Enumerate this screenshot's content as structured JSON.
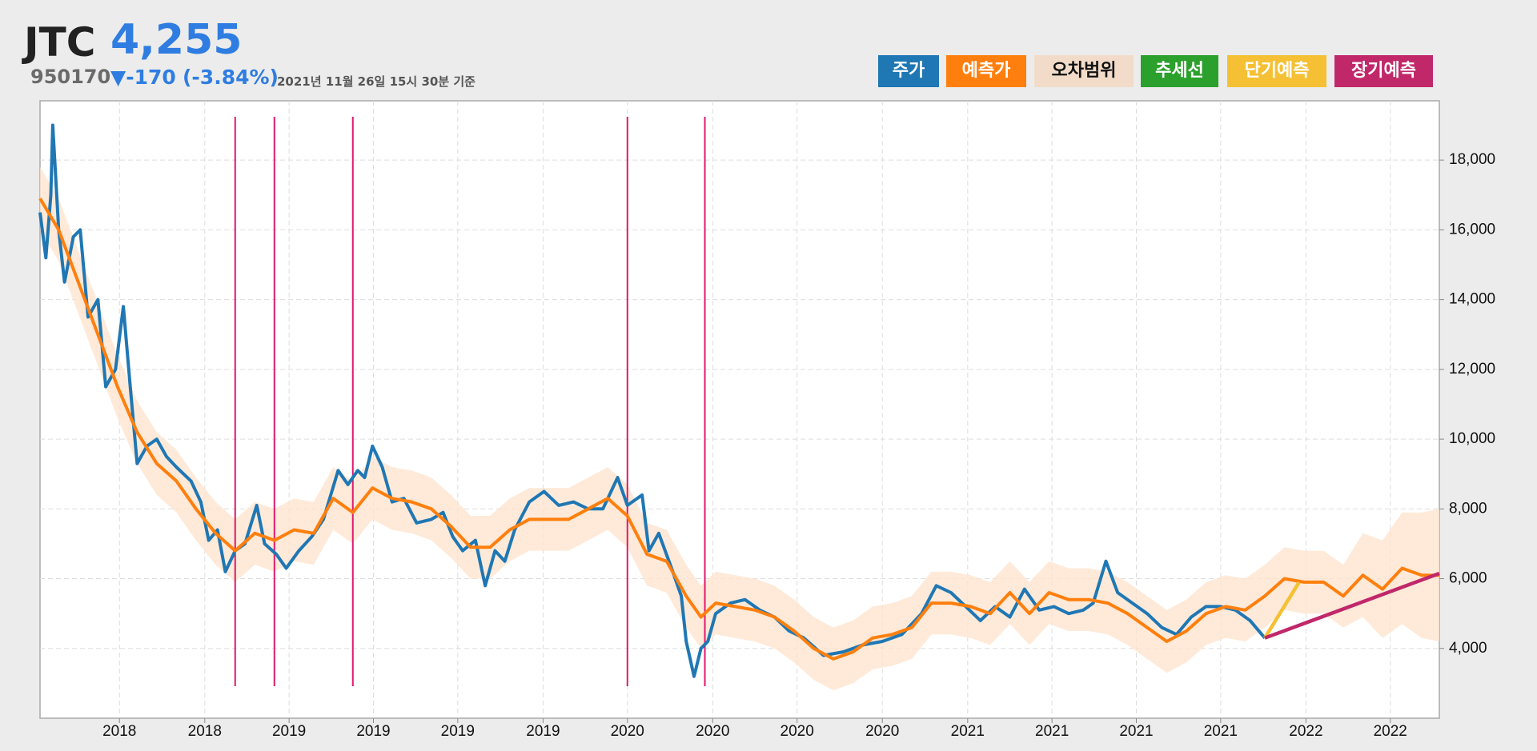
{
  "header": {
    "name": "JTC",
    "price": "4,255",
    "code": "950170",
    "change": "▼-170",
    "change_pct": "(-3.84%)",
    "timestamp": "2021년 11월 26일 15시 30분 기준"
  },
  "chart_data": {
    "type": "line",
    "xlim": [
      0,
      1427
    ],
    "ylim": [
      2000,
      19700
    ],
    "xticks": [
      {
        "value": 81,
        "label": "2018"
      },
      {
        "value": 168,
        "label": "2018"
      },
      {
        "value": 254,
        "label": "2019"
      },
      {
        "value": 340,
        "label": "2019"
      },
      {
        "value": 426,
        "label": "2019"
      },
      {
        "value": 513,
        "label": "2019"
      },
      {
        "value": 599,
        "label": "2020"
      },
      {
        "value": 686,
        "label": "2020"
      },
      {
        "value": 772,
        "label": "2020"
      },
      {
        "value": 859,
        "label": "2020"
      },
      {
        "value": 946,
        "label": "2021"
      },
      {
        "value": 1032,
        "label": "2021"
      },
      {
        "value": 1118,
        "label": "2021"
      },
      {
        "value": 1204,
        "label": "2021"
      },
      {
        "value": 1291,
        "label": "2022"
      },
      {
        "value": 1377,
        "label": "2022"
      }
    ],
    "yticks": [
      {
        "value": 4000,
        "label": "4,000"
      },
      {
        "value": 6000,
        "label": "6,000"
      },
      {
        "value": 8000,
        "label": "8,000"
      },
      {
        "value": 10000,
        "label": "10,000"
      },
      {
        "value": 12000,
        "label": "12,000"
      },
      {
        "value": 14000,
        "label": "14,000"
      },
      {
        "value": 16000,
        "label": "16,000"
      },
      {
        "value": 18000,
        "label": "18,000"
      }
    ],
    "grid": true,
    "series": [
      {
        "name": "주가",
        "color": "#1f77b4",
        "x": [
          0,
          6,
          11,
          13,
          19,
          25,
          34,
          41,
          49,
          59,
          67,
          77,
          85,
          92,
          99,
          109,
          119,
          129,
          139,
          154,
          164,
          172,
          181,
          189,
          199,
          209,
          221,
          229,
          241,
          251,
          264,
          277,
          289,
          304,
          314,
          324,
          331,
          339,
          349,
          359,
          371,
          384,
          399,
          411,
          421,
          431,
          444,
          454,
          464,
          474,
          484,
          499,
          514,
          529,
          544,
          559,
          574,
          589,
          599,
          614,
          621,
          631,
          644,
          654,
          659,
          667,
          674,
          681,
          689,
          704,
          719,
          734,
          749,
          764,
          779,
          799,
          819,
          839,
          859,
          879,
          899,
          914,
          929,
          944,
          959,
          974,
          989,
          1004,
          1019,
          1034,
          1049,
          1064,
          1074,
          1087,
          1099,
          1114,
          1129,
          1144,
          1159,
          1174,
          1189,
          1204,
          1219,
          1234,
          1249
        ],
        "values": [
          16500,
          15200,
          17000,
          19000,
          16000,
          14500,
          15800,
          16000,
          13500,
          14000,
          11500,
          12000,
          13800,
          11500,
          9300,
          9800,
          10000,
          9500,
          9200,
          8800,
          8200,
          7100,
          7400,
          6200,
          6800,
          7000,
          8100,
          7000,
          6700,
          6300,
          6800,
          7200,
          7700,
          9100,
          8700,
          9100,
          8900,
          9800,
          9200,
          8200,
          8300,
          7600,
          7700,
          7900,
          7200,
          6800,
          7100,
          5800,
          6800,
          6500,
          7400,
          8200,
          8500,
          8100,
          8200,
          8000,
          8000,
          8900,
          8100,
          8400,
          6800,
          7300,
          6300,
          5500,
          4200,
          3200,
          4000,
          4200,
          5000,
          5300,
          5400,
          5100,
          4900,
          4500,
          4300,
          3800,
          3900,
          4100,
          4200,
          4400,
          5000,
          5800,
          5600,
          5200,
          4800,
          5200,
          4900,
          5700,
          5100,
          5200,
          5000,
          5100,
          5300,
          6500,
          5600,
          5300,
          5000,
          4600,
          4400,
          4900,
          5200,
          5200,
          5100,
          4800,
          4300
        ]
      },
      {
        "name": "예측가",
        "color": "#ff7f0e",
        "x": [
          0,
          19,
          39,
          59,
          79,
          99,
          119,
          139,
          159,
          179,
          199,
          219,
          239,
          259,
          279,
          299,
          319,
          339,
          359,
          379,
          399,
          419,
          439,
          459,
          479,
          499,
          519,
          539,
          559,
          579,
          599,
          619,
          639,
          659,
          674,
          689,
          709,
          729,
          749,
          769,
          789,
          809,
          829,
          849,
          869,
          889,
          909,
          929,
          949,
          969,
          989,
          1009,
          1029,
          1049,
          1069,
          1089,
          1109,
          1129,
          1149,
          1169,
          1189,
          1209,
          1229,
          1249,
          1269,
          1289,
          1309,
          1329,
          1349,
          1369,
          1389,
          1409,
          1427
        ],
        "values": [
          16900,
          16000,
          14500,
          13000,
          11500,
          10200,
          9300,
          8800,
          8000,
          7300,
          6800,
          7300,
          7100,
          7400,
          7300,
          8300,
          7900,
          8600,
          8300,
          8200,
          8000,
          7500,
          6900,
          6900,
          7400,
          7700,
          7700,
          7700,
          8000,
          8300,
          7800,
          6700,
          6500,
          5500,
          4900,
          5300,
          5200,
          5100,
          4900,
          4500,
          4000,
          3700,
          3900,
          4300,
          4400,
          4600,
          5300,
          5300,
          5200,
          5000,
          5600,
          5000,
          5600,
          5400,
          5400,
          5300,
          5000,
          4600,
          4200,
          4500,
          5000,
          5200,
          5100,
          5500,
          6000,
          5900,
          5900,
          5500,
          6100,
          5700,
          6300,
          6100,
          6100
        ]
      },
      {
        "name": "오차범위",
        "color": "#ffe3cc",
        "upper": [
          17800,
          16900,
          15400,
          13900,
          12400,
          11100,
          10200,
          9700,
          8900,
          8200,
          7700,
          8200,
          8000,
          8300,
          8200,
          9200,
          8800,
          9500,
          9200,
          9100,
          8900,
          8400,
          7800,
          7800,
          8300,
          8600,
          8600,
          8600,
          8900,
          9200,
          8700,
          7600,
          7400,
          6400,
          5800,
          6200,
          6100,
          6000,
          5800,
          5400,
          4900,
          4600,
          4800,
          5200,
          5300,
          5500,
          6200,
          6200,
          6100,
          5900,
          6500,
          5900,
          6500,
          6300,
          6300,
          6200,
          5900,
          5500,
          5100,
          5400,
          5900,
          6100,
          6000,
          6400,
          6900,
          6800,
          6800,
          6400,
          7300,
          7100,
          7900,
          7900,
          8000
        ],
        "lower": [
          16000,
          15100,
          13600,
          12100,
          10600,
          9300,
          8400,
          7900,
          7100,
          6400,
          5900,
          6400,
          6200,
          6500,
          6400,
          7400,
          7000,
          7700,
          7400,
          7300,
          7100,
          6600,
          6000,
          6000,
          6500,
          6800,
          6800,
          6800,
          7100,
          7400,
          6900,
          5800,
          5600,
          4600,
          4000,
          4400,
          4300,
          4200,
          4000,
          3600,
          3100,
          2800,
          3000,
          3400,
          3500,
          3700,
          4400,
          4400,
          4300,
          4100,
          4700,
          4100,
          4700,
          4500,
          4500,
          4400,
          4100,
          3700,
          3300,
          3600,
          4100,
          4300,
          4200,
          4600,
          5100,
          5000,
          5000,
          4600,
          4900,
          4300,
          4700,
          4300,
          4200
        ]
      },
      {
        "name": "추세선",
        "color": "#2ca02c",
        "x": [],
        "values": []
      },
      {
        "name": "단기예측",
        "color": "#f5c033",
        "x": [
          1249,
          1284
        ],
        "values": [
          4300,
          5900
        ]
      },
      {
        "name": "장기예측",
        "color": "#c0286a",
        "x": [
          1249,
          1427
        ],
        "values": [
          4300,
          6150
        ]
      }
    ],
    "event_lines": {
      "color": "#e0186c",
      "x": [
        199,
        239,
        319,
        599,
        678
      ]
    }
  }
}
